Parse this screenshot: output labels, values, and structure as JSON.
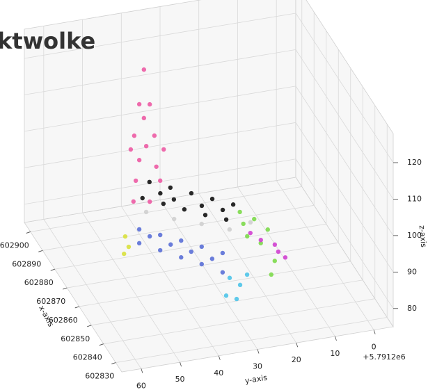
{
  "chart_data": {
    "type": "scatter3d",
    "title": "ktwolke",
    "xlabel": "x-axis",
    "ylabel": "y-axis",
    "zlabel": "z-axis",
    "y_offset_label": "+5.7912e6",
    "xlim": [
      602825,
      602905
    ],
    "ylim": [
      -5,
      65
    ],
    "zlim": [
      75,
      128
    ],
    "xticks": [
      602830,
      602840,
      602850,
      602860,
      602870,
      602880,
      602890,
      602900
    ],
    "yticks": [
      0,
      10,
      20,
      30,
      40,
      50,
      60
    ],
    "zticks": [
      80,
      90,
      100,
      110,
      120
    ],
    "grid": true,
    "series": [
      {
        "color": "#ec5aa3",
        "x": [
          602881,
          602881,
          602881,
          602881,
          602881,
          602881,
          602881,
          602881,
          602881,
          602881,
          602881,
          602881,
          602881,
          602881,
          602881
        ],
        "y": [
          41.7,
          42.9,
          40.2,
          41.7,
          44.2,
          39.0,
          45.1,
          36.6,
          41.1,
          42.9,
          38.5,
          43.8,
          37.5,
          44.4,
          40.2
        ],
        "z": [
          125.1,
          115.8,
          115.3,
          111.8,
          107.4,
          106.5,
          103.8,
          102.3,
          104.0,
          100.5,
          97.9,
          95.0,
          93.9,
          89.4,
          88.6
        ]
      },
      {
        "color": "#111111",
        "x": [
          602865,
          602865,
          602865,
          602865,
          602865,
          602865,
          602865,
          602865,
          602865,
          602865,
          602865,
          602865,
          602865,
          602865
        ],
        "y": [
          45.3,
          39.9,
          34.5,
          29.1,
          23.7,
          47.1,
          41.7,
          36.3,
          30.9,
          25.5,
          42.5,
          31.8,
          26.4,
          39.0
        ],
        "z": [
          103.1,
          100.6,
          98.1,
          95.6,
          93.1,
          99.0,
          96.5,
          94.0,
          91.5,
          89.3,
          99.5,
          94.2,
          92.1,
          97.2
        ]
      },
      {
        "color": "#5a6fd6",
        "x": [
          602853,
          602853,
          602853,
          602853,
          602853,
          602853,
          602853,
          602853,
          602853,
          602853,
          602853,
          602853,
          602853,
          602853
        ],
        "y": [
          51.7,
          46.3,
          40.9,
          35.6,
          30.2,
          51.7,
          46.3,
          40.9,
          35.6,
          30.2,
          49.0,
          38.3,
          32.9,
          43.6
        ],
        "z": [
          97.4,
          94.9,
          92.4,
          89.8,
          87.1,
          93.6,
          90.7,
          87.8,
          85.0,
          81.8,
          95.0,
          88.9,
          86.0,
          91.8
        ]
      },
      {
        "color": "#cfcfcf",
        "x": [
          602861,
          602861,
          602861,
          602861,
          602861
        ],
        "y": [
          47.4,
          40.2,
          33.1,
          25.9,
          20.5
        ],
        "z": [
          97.3,
          94.1,
          91.5,
          88.7,
          89.7
        ]
      },
      {
        "color": "#7cd94a",
        "x": [
          602857,
          602857,
          602857,
          602857,
          602857,
          602857,
          602857,
          602857
        ],
        "y": [
          24.5,
          20.8,
          17.3,
          22.6,
          19.1,
          15.5,
          16.4,
          23.6
        ],
        "z": [
          95.3,
          92.7,
          89.2,
          88.3,
          85.8,
          80.3,
          76.7,
          91.9
        ]
      },
      {
        "color": "#d040d0",
        "x": [
          602849,
          602849,
          602849,
          602849,
          602849
        ],
        "y": [
          21.6,
          18.0,
          15.3,
          17.1,
          24.3
        ],
        "z": [
          91.2,
          89.3,
          85.3,
          87.2,
          93.6
        ]
      },
      {
        "color": "#4cc3e8",
        "x": [
          602845,
          602845,
          602845,
          602845,
          602845
        ],
        "y": [
          30.9,
          28.2,
          26.4,
          29.1,
          31.8
        ],
        "z": [
          84.5,
          82.1,
          84.6,
          78.4,
          79.8
        ]
      },
      {
        "color": "#d8e03c",
        "x": [
          602869,
          602869,
          602869
        ],
        "y": [
          50.3,
          49.4,
          50.6
        ],
        "z": [
          87.0,
          84.0,
          82.3
        ]
      }
    ]
  }
}
